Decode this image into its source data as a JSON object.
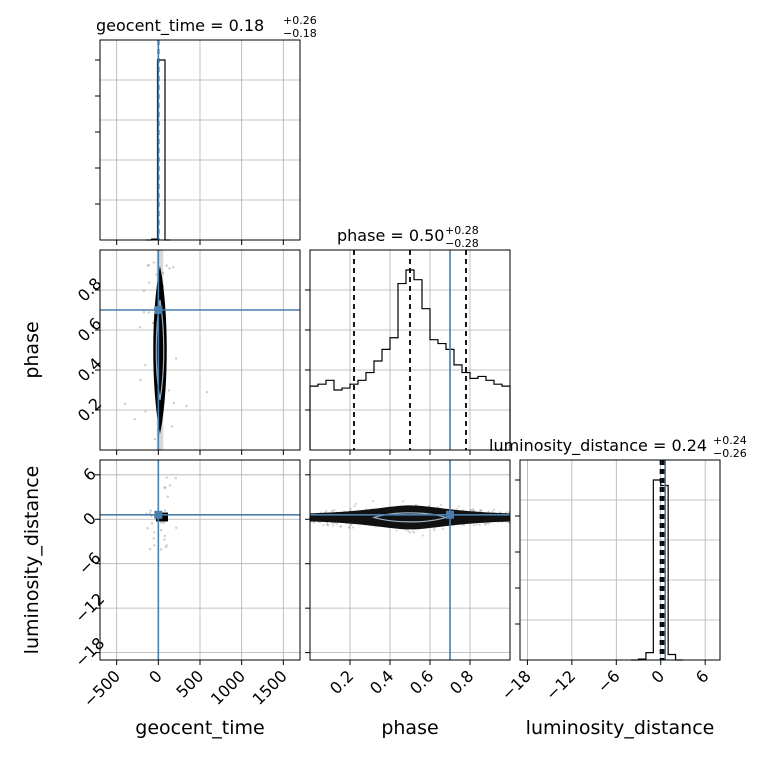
{
  "chart_data": {
    "type": "corner",
    "parameters": [
      "geocent_time",
      "phase",
      "luminosity_distance"
    ],
    "truths": {
      "geocent_time": 0,
      "phase": 0.7,
      "luminosity_distance": 0.6
    },
    "titles": {
      "geocent_time": {
        "label": "geocent_time",
        "median": "0.18",
        "plus": "+0.26",
        "minus": "−0.18"
      },
      "phase": {
        "label": "phase",
        "median": "0.50",
        "plus": "+0.28",
        "minus": "−0.28"
      },
      "luminosity_distance": {
        "label": "luminosity_distance",
        "median": "0.24",
        "plus": "+0.24",
        "minus": "−0.26"
      }
    },
    "axes": {
      "geocent_time": {
        "range": [
          -700,
          1700
        ],
        "ticks": [
          -500,
          0,
          500,
          1000,
          1500
        ],
        "tick_labels": [
          "−500",
          "0",
          "500",
          "1000",
          "1500"
        ]
      },
      "phase": {
        "range": [
          0.0,
          1.0
        ],
        "ticks": [
          0.2,
          0.4,
          0.6,
          0.8
        ],
        "tick_labels": [
          "0.2",
          "0.4",
          "0.6",
          "0.8"
        ]
      },
      "luminosity_distance": {
        "range": [
          -19,
          8
        ],
        "ticks": [
          -18,
          -12,
          -6,
          0,
          6
        ],
        "tick_labels": [
          "−18",
          "−12",
          "−6",
          "0",
          "6"
        ]
      }
    },
    "quantiles": {
      "geocent_time": [
        0.0,
        0.18,
        0.44
      ],
      "phase": [
        0.22,
        0.5,
        0.78
      ],
      "luminosity_distance": [
        -0.02,
        0.24,
        0.48
      ]
    },
    "hist_phase": {
      "bin_edges": [
        0.0,
        0.04,
        0.08,
        0.12,
        0.16,
        0.2,
        0.24,
        0.28,
        0.32,
        0.36,
        0.4,
        0.44,
        0.48,
        0.52,
        0.56,
        0.6,
        0.64,
        0.68,
        0.72,
        0.76,
        0.8,
        0.84,
        0.88,
        0.92,
        0.96,
        1.0
      ],
      "counts": [
        0.33,
        0.34,
        0.36,
        0.31,
        0.32,
        0.34,
        0.36,
        0.4,
        0.46,
        0.52,
        0.58,
        0.86,
        0.93,
        0.88,
        0.73,
        0.57,
        0.55,
        0.52,
        0.44,
        0.4,
        0.37,
        0.38,
        0.36,
        0.34,
        0.33
      ]
    },
    "hist_geocent_time": {
      "bin_edges": [
        -150,
        -80,
        -10,
        80,
        140
      ],
      "counts": [
        0.0,
        0.005,
        0.99,
        0.0
      ]
    },
    "hist_luminosity_distance": {
      "bin_edges": [
        -4,
        -3,
        -2,
        -1,
        0,
        1,
        2,
        3
      ],
      "counts": [
        0.0,
        0.005,
        0.04,
        0.98,
        0.95,
        0.03,
        0.0
      ]
    },
    "grid": true
  }
}
